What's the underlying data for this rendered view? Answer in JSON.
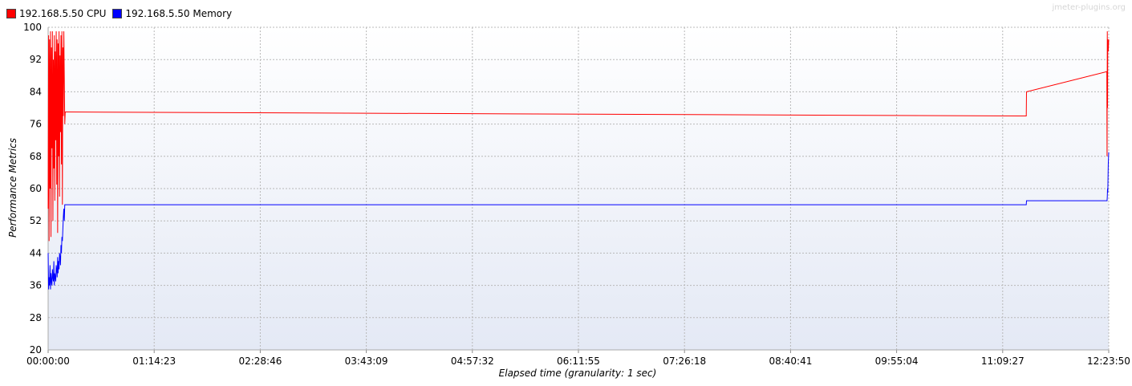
{
  "watermark": "jmeter-plugins.org",
  "chart_data": {
    "type": "line",
    "xlabel": "Elapsed time (granularity: 1 sec)",
    "ylabel": "Performance Metrics",
    "ylim": [
      20,
      100
    ],
    "xlim": [
      "00:00:00",
      "12:23:50"
    ],
    "grid": true,
    "legend_position": "top-left",
    "x_ticks": [
      "00:00:00",
      "01:14:23",
      "02:28:46",
      "03:43:09",
      "04:57:32",
      "06:11:55",
      "07:26:18",
      "08:40:41",
      "09:55:04",
      "11:09:27",
      "12:23:50"
    ],
    "y_ticks": [
      20,
      28,
      36,
      44,
      52,
      60,
      68,
      76,
      84,
      92,
      100
    ],
    "series": [
      {
        "name": "192.168.5.50 CPU",
        "color": "#ff0000",
        "x": [
          "00:00:00",
          "00:00:20",
          "00:00:40",
          "00:01:00",
          "00:01:20",
          "00:01:40",
          "00:02:00",
          "00:02:20",
          "00:02:40",
          "00:03:00",
          "00:03:20",
          "00:03:40",
          "00:04:00",
          "00:04:20",
          "00:04:40",
          "00:05:00",
          "00:05:20",
          "00:05:40",
          "00:06:00",
          "00:06:20",
          "00:06:40",
          "00:07:00",
          "00:07:20",
          "00:07:40",
          "00:08:00",
          "00:08:20",
          "00:08:40",
          "00:09:00",
          "00:09:20",
          "00:09:40",
          "00:10:00",
          "00:10:20",
          "00:10:40",
          "00:11:00",
          "00:11:20",
          "00:11:40",
          "00:12:00",
          "00:12:20",
          "00:12:40",
          "11:26:00",
          "11:26:10",
          "12:22:30",
          "12:22:40",
          "12:22:50",
          "12:23:00",
          "12:23:10",
          "12:23:30",
          "12:23:50"
        ],
        "values": [
          55,
          98,
          47,
          97,
          60,
          99,
          48,
          95,
          70,
          99,
          52,
          92,
          65,
          98,
          57,
          94,
          72,
          99,
          61,
          97,
          49,
          96,
          68,
          99,
          58,
          93,
          74,
          98,
          66,
          99,
          56,
          95,
          78,
          99,
          88,
          76,
          79,
          79,
          79,
          78,
          84,
          89,
          68,
          99,
          80,
          97,
          94,
          97
        ]
      },
      {
        "name": "192.168.5.50 Memory",
        "color": "#0000ff",
        "x": [
          "00:00:00",
          "00:00:20",
          "00:00:40",
          "00:01:00",
          "00:01:20",
          "00:01:40",
          "00:02:00",
          "00:02:20",
          "00:02:40",
          "00:03:00",
          "00:03:20",
          "00:03:40",
          "00:04:00",
          "00:04:20",
          "00:04:40",
          "00:05:00",
          "00:05:20",
          "00:05:40",
          "00:06:00",
          "00:06:20",
          "00:06:40",
          "00:07:00",
          "00:07:20",
          "00:07:40",
          "00:08:00",
          "00:08:20",
          "00:08:40",
          "00:09:00",
          "00:09:20",
          "00:09:40",
          "00:10:00",
          "00:10:20",
          "00:10:40",
          "00:11:00",
          "00:11:20",
          "00:11:40",
          "00:12:00",
          "00:12:20",
          "00:12:40",
          "11:26:00",
          "11:26:10",
          "12:22:30",
          "12:22:40",
          "12:22:50",
          "12:23:00",
          "12:23:10",
          "12:23:30",
          "12:23:50"
        ],
        "values": [
          44,
          35,
          38,
          36,
          41,
          35,
          39,
          37,
          36,
          40,
          38,
          37,
          42,
          36,
          39,
          38,
          37,
          41,
          40,
          38,
          43,
          39,
          42,
          40,
          44,
          43,
          41,
          46,
          44,
          48,
          47,
          50,
          53,
          55,
          52,
          56,
          56,
          56,
          56,
          56,
          57,
          57,
          57,
          58,
          60,
          59,
          66,
          69
        ]
      }
    ]
  }
}
